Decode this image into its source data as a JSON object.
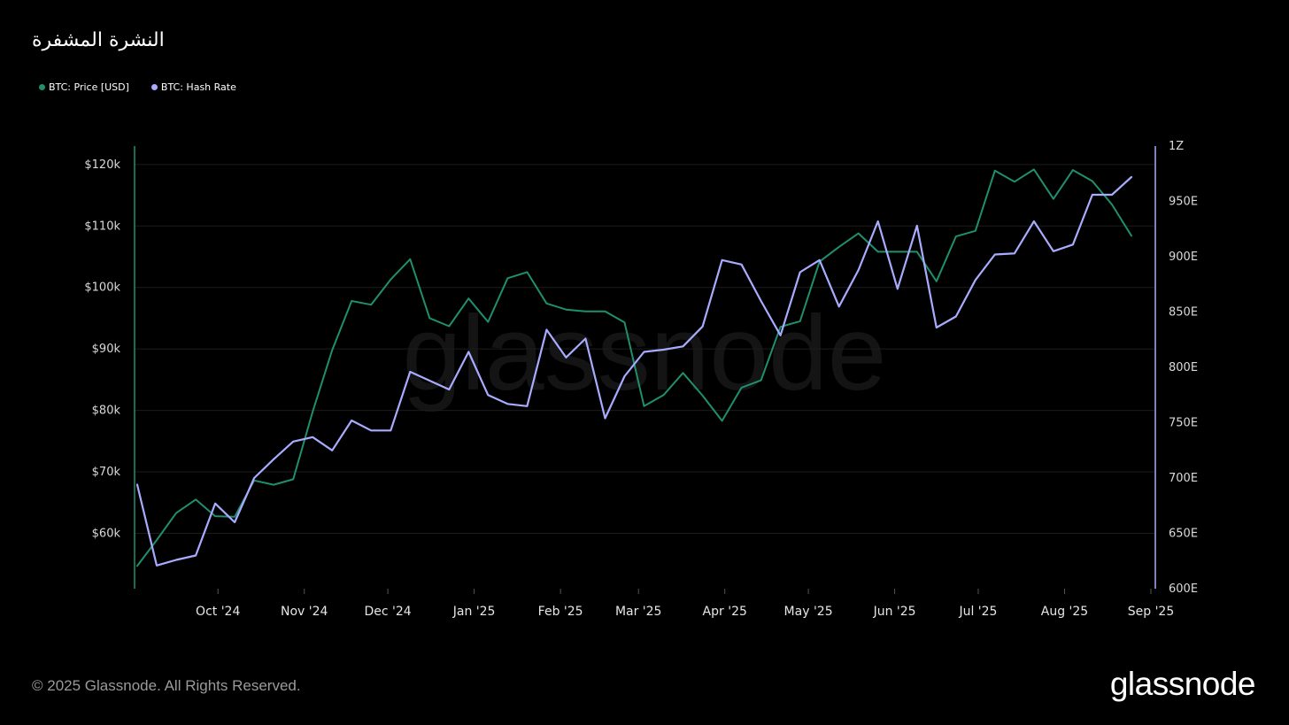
{
  "header": {
    "title": "النشرة المشفرة"
  },
  "legend": {
    "items": [
      {
        "label": "BTC: Price [USD]",
        "color": "#1f8f6e"
      },
      {
        "label": "BTC: Hash Rate",
        "color": "#a9abff"
      }
    ]
  },
  "watermark": "glassnode",
  "footer": {
    "copyright": "© 2025 Glassnode. All Rights Reserved.",
    "logo": "glassnode"
  },
  "colors": {
    "background": "#000000",
    "price": "#1f8f6e",
    "hashrate": "#a9abff",
    "grid": "#1c1c1c"
  },
  "chart_data": {
    "type": "line",
    "title": "",
    "grid": true,
    "legend_placement": "top-left",
    "x_range": [
      "2024-09-02",
      "2025-09-01"
    ],
    "x_ticks": [
      {
        "date": "2024-10-01",
        "label": "Oct '24"
      },
      {
        "date": "2024-11-01",
        "label": "Nov '24"
      },
      {
        "date": "2024-12-01",
        "label": "Dec '24"
      },
      {
        "date": "2025-01-01",
        "label": "Jan '25"
      },
      {
        "date": "2025-02-01",
        "label": "Feb '25"
      },
      {
        "date": "2025-03-01",
        "label": "Mar '25"
      },
      {
        "date": "2025-04-01",
        "label": "Apr '25"
      },
      {
        "date": "2025-05-01",
        "label": "May '25"
      },
      {
        "date": "2025-06-01",
        "label": "Jun '25"
      },
      {
        "date": "2025-07-01",
        "label": "Jul '25"
      },
      {
        "date": "2025-08-01",
        "label": "Aug '25"
      },
      {
        "date": "2025-09-01",
        "label": "Sep '25"
      }
    ],
    "y_left": {
      "range": [
        51000,
        123000
      ],
      "ticks": [
        60000,
        70000,
        80000,
        90000,
        100000,
        110000,
        120000
      ],
      "tick_labels": [
        "$60k",
        "$70k",
        "$80k",
        "$90k",
        "$100k",
        "$110k",
        "$120k"
      ]
    },
    "y_right": {
      "range": [
        600,
        1000
      ],
      "ticks": [
        600,
        650,
        700,
        750,
        800,
        850,
        900,
        950,
        1000
      ],
      "tick_labels": [
        "600E",
        "650E",
        "700E",
        "750E",
        "800E",
        "850E",
        "900E",
        "950E",
        "1Z"
      ]
    },
    "dates": [
      "2024-09-02",
      "2024-09-09",
      "2024-09-16",
      "2024-09-23",
      "2024-09-30",
      "2024-10-07",
      "2024-10-14",
      "2024-10-21",
      "2024-10-28",
      "2024-11-04",
      "2024-11-11",
      "2024-11-18",
      "2024-11-25",
      "2024-12-02",
      "2024-12-09",
      "2024-12-16",
      "2024-12-23",
      "2024-12-30",
      "2025-01-06",
      "2025-01-13",
      "2025-01-20",
      "2025-01-27",
      "2025-02-03",
      "2025-02-10",
      "2025-02-17",
      "2025-02-24",
      "2025-03-03",
      "2025-03-10",
      "2025-03-17",
      "2025-03-24",
      "2025-03-31",
      "2025-04-07",
      "2025-04-14",
      "2025-04-21",
      "2025-04-28",
      "2025-05-05",
      "2025-05-12",
      "2025-05-19",
      "2025-05-26",
      "2025-06-02",
      "2025-06-09",
      "2025-06-16",
      "2025-06-23",
      "2025-06-30",
      "2025-07-07",
      "2025-07-14",
      "2025-07-21",
      "2025-07-28",
      "2025-08-04",
      "2025-08-11",
      "2025-08-18",
      "2025-08-25"
    ],
    "series": [
      {
        "name": "BTC: Price [USD]",
        "axis": "left",
        "values": [
          54700,
          58900,
          63300,
          65500,
          62800,
          62700,
          68600,
          67900,
          68800,
          79800,
          89800,
          97800,
          97200,
          101300,
          104600,
          95000,
          93700,
          98200,
          94400,
          101500,
          102500,
          97400,
          96400,
          96100,
          96100,
          94300,
          80700,
          82500,
          86100,
          82400,
          78300,
          83700,
          84900,
          93600,
          94500,
          104200,
          106600,
          108800,
          105800,
          105800,
          105800,
          101000,
          108300,
          109200,
          119000,
          117200,
          119200,
          114400,
          119100,
          117300,
          113500,
          108400
        ]
      },
      {
        "name": "BTC: Hash Rate",
        "axis": "right",
        "values": [
          694,
          621,
          626,
          630,
          677,
          660,
          700,
          717,
          733,
          737,
          725,
          752,
          743,
          743,
          796,
          788,
          780,
          814,
          775,
          767,
          765,
          834,
          809,
          826,
          754,
          792,
          814,
          816,
          819,
          837,
          897,
          893,
          860,
          829,
          886,
          897,
          855,
          888,
          932,
          871,
          928,
          836,
          846,
          879,
          902,
          903,
          932,
          905,
          911,
          956,
          956,
          972
        ]
      }
    ]
  }
}
